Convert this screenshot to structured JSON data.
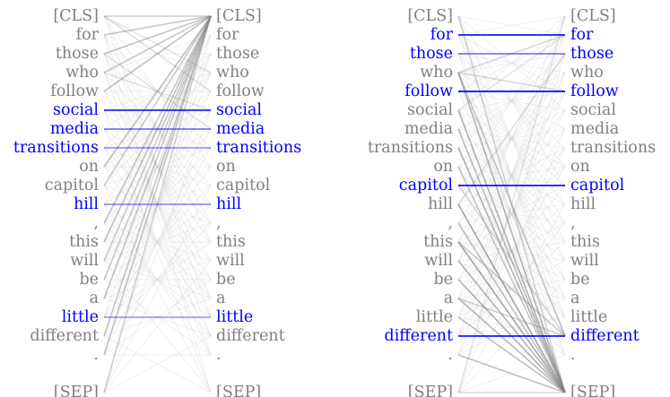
{
  "tokens": [
    "[CLS]",
    "for",
    "those",
    "who",
    "follow",
    "social",
    "media",
    "transitions",
    "on",
    "capitol",
    "hill",
    ",",
    "this",
    "will",
    "be",
    "a",
    "little",
    "different",
    ".",
    "[SEP]"
  ],
  "colors": {
    "normal": "#808080",
    "highlight": "#0000ff",
    "faint_line": "#d0d0d0",
    "strong_line": "#808080"
  },
  "panels": [
    {
      "name": "left",
      "highlighted_tokens": [
        5,
        6,
        7,
        10,
        16
      ],
      "highlight_links": [
        [
          5,
          5,
          0.75
        ],
        [
          6,
          6,
          0.45
        ],
        [
          7,
          7,
          0.35
        ],
        [
          10,
          10,
          0.35
        ],
        [
          16,
          16,
          0.3
        ]
      ],
      "strong_links": [
        [
          0,
          0,
          0.35
        ],
        [
          1,
          0,
          0.45
        ],
        [
          2,
          0,
          0.45
        ],
        [
          3,
          0,
          0.4
        ],
        [
          4,
          0,
          0.45
        ],
        [
          8,
          0,
          0.45
        ],
        [
          9,
          0,
          0.4
        ],
        [
          11,
          0,
          0.45
        ],
        [
          12,
          0,
          0.45
        ],
        [
          13,
          0,
          0.4
        ],
        [
          14,
          0,
          0.4
        ],
        [
          15,
          0,
          0.45
        ],
        [
          17,
          0,
          0.45
        ],
        [
          18,
          0,
          0.45
        ],
        [
          19,
          0,
          0.35
        ],
        [
          0,
          3,
          0.2
        ],
        [
          0,
          4,
          0.2
        ],
        [
          2,
          6,
          0.15
        ],
        [
          3,
          5,
          0.15
        ]
      ],
      "faint_fan": true
    },
    {
      "name": "right",
      "highlighted_tokens": [
        1,
        2,
        4,
        9,
        17
      ],
      "highlight_links": [
        [
          1,
          1,
          0.8
        ],
        [
          2,
          2,
          0.45
        ],
        [
          4,
          4,
          0.85
        ],
        [
          9,
          9,
          0.8
        ],
        [
          17,
          17,
          0.8
        ]
      ],
      "strong_links": [
        [
          0,
          19,
          0.35
        ],
        [
          3,
          19,
          0.6
        ],
        [
          5,
          19,
          0.6
        ],
        [
          6,
          19,
          0.5
        ],
        [
          7,
          19,
          0.6
        ],
        [
          8,
          19,
          0.45
        ],
        [
          10,
          19,
          0.7
        ],
        [
          11,
          19,
          0.5
        ],
        [
          12,
          19,
          0.7
        ],
        [
          13,
          19,
          0.6
        ],
        [
          14,
          19,
          0.6
        ],
        [
          15,
          19,
          0.55
        ],
        [
          16,
          19,
          0.5
        ],
        [
          18,
          19,
          0.45
        ],
        [
          19,
          19,
          0.3
        ],
        [
          3,
          17,
          0.45
        ],
        [
          9,
          17,
          0.3
        ],
        [
          12,
          17,
          0.35
        ],
        [
          15,
          17,
          0.35
        ],
        [
          10,
          2,
          0.25
        ],
        [
          3,
          1,
          0.3
        ],
        [
          3,
          4,
          0.3
        ],
        [
          5,
          1,
          0.2
        ],
        [
          19,
          0,
          0.2
        ]
      ],
      "faint_fan": true
    }
  ]
}
